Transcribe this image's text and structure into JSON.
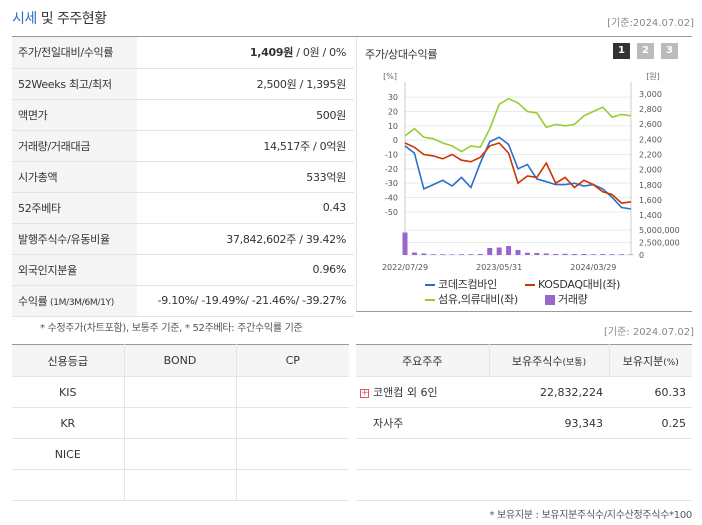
{
  "header": {
    "title_accent": "시세",
    "title_rest": " 및 주주현황",
    "date": "[기준:2024.07.02]"
  },
  "quote_rows": [
    {
      "key": "주가/전일대비/수익률",
      "value_bold": "1,409원",
      "value_rest": " / 0원 / 0%"
    },
    {
      "key": "52Weeks 최고/최저",
      "value": "2,500원 / 1,395원"
    },
    {
      "key": "액면가",
      "value": "500원"
    },
    {
      "key": "거래량/거래대금",
      "value": "14,517주 / 0억원"
    },
    {
      "key": "시가총액",
      "value": "533억원"
    },
    {
      "key": "52주베타",
      "value": "0.43"
    },
    {
      "key": "발행주식수/유동비율",
      "value": "37,842,602주 / 39.42%"
    },
    {
      "key": "외국인지분율",
      "value": "0.96%"
    }
  ],
  "returns_row": {
    "key": "수익률",
    "key_small": " (1M/3M/6M/1Y)",
    "value": "-9.10%/ -19.49%/ -21.46%/ -39.27%"
  },
  "notes": "* 수정주가(차트포함), 보통주 기준, * 52주베타: 주간수익률 기준",
  "chart_panel": {
    "title": "주가/상대수익률",
    "pages": [
      "1",
      "2",
      "3"
    ],
    "left_unit": "[%]",
    "right_unit": "[원]",
    "left_ticks": [
      "30",
      "20",
      "10",
      "0",
      "-10",
      "-20",
      "-30",
      "-40",
      "-50"
    ],
    "right_ticks": [
      "3,000",
      "2,800",
      "2,600",
      "2,400",
      "2,200",
      "2,000",
      "1,800",
      "1,600",
      "1,400"
    ],
    "vol_ticks": [
      "5,000,000",
      "2,500,000",
      "0"
    ],
    "x_ticks": [
      "2022/07/29",
      "2023/05/31",
      "2024/03/29"
    ],
    "legend": [
      "코데즈컴바인",
      "KOSDAQ대비(좌)",
      "섬유,의류대비(좌)",
      "거래량"
    ],
    "colors": {
      "stock": "#2a6fc9",
      "kosdaq": "#cc3300",
      "textile": "#99cc33",
      "volume": "#9966cc"
    }
  },
  "chart_data": {
    "type": "line",
    "x": [
      "2022/07/29",
      "2022/08/31",
      "2022/09/30",
      "2022/10/31",
      "2022/11/30",
      "2022/12/29",
      "2023/01/31",
      "2023/02/28",
      "2023/03/31",
      "2023/04/28",
      "2023/05/31",
      "2023/06/30",
      "2023/07/31",
      "2023/08/31",
      "2023/09/27",
      "2023/10/31",
      "2023/11/30",
      "2023/12/28",
      "2024/01/31",
      "2024/02/29",
      "2024/03/29",
      "2024/04/30",
      "2024/05/31",
      "2024/06/28",
      "2024/07/02"
    ],
    "series": [
      {
        "name": "코데즈컴바인",
        "values": [
          -4,
          -9,
          -34,
          -31,
          -28,
          -32,
          -26,
          -33,
          -16,
          -1,
          2,
          -3,
          -20,
          -17,
          -27,
          -29,
          -31,
          -31,
          -30,
          -32,
          -31,
          -34,
          -40,
          -47,
          -48
        ]
      },
      {
        "name": "KOSDAQ대비(좌)",
        "values": [
          -2,
          -5,
          -10,
          -11,
          -13,
          -10,
          -14,
          -15,
          -12,
          -4,
          -2,
          -9,
          -30,
          -25,
          -26,
          -16,
          -30,
          -26,
          -33,
          -28,
          -31,
          -36,
          -38,
          -44,
          -43
        ]
      },
      {
        "name": "섬유,의류대비(좌)",
        "values": [
          3,
          8,
          2,
          1,
          -2,
          -4,
          -8,
          -4,
          -5,
          8,
          25,
          29,
          26,
          20,
          19,
          9,
          11,
          10,
          11,
          17,
          20,
          23,
          16,
          18,
          17
        ]
      }
    ],
    "volume": [
      4500000,
      500000,
      300000,
      150000,
      150000,
      120000,
      150000,
      150000,
      200000,
      1400000,
      1500000,
      1800000,
      1000000,
      450000,
      400000,
      300000,
      200000,
      250000,
      200000,
      200000,
      150000,
      180000,
      150000,
      150000,
      100000
    ],
    "y_left_range": [
      -55,
      35
    ],
    "y_right_range": [
      1350,
      3050
    ],
    "y_volume_range": [
      0,
      5000000
    ]
  },
  "date2": "[기준: 2024.07.02]",
  "credit_table": {
    "headers": [
      "신용등급",
      "BOND",
      "CP"
    ],
    "rows": [
      [
        "KIS",
        "",
        ""
      ],
      [
        "KR",
        "",
        ""
      ],
      [
        "NICE",
        "",
        ""
      ],
      [
        "",
        "",
        ""
      ]
    ]
  },
  "holder_table": {
    "headers": [
      "주요주주",
      "보유주식수",
      "(보통)",
      "보유지분",
      "(%)"
    ],
    "rows": [
      {
        "name": "코앤컴 외 6인",
        "shares": "22,832,224",
        "pct": "60.33"
      },
      {
        "name": "자사주",
        "shares": "93,343",
        "pct": "0.25"
      },
      {
        "name": "",
        "shares": "",
        "pct": ""
      },
      {
        "name": "",
        "shares": "",
        "pct": ""
      }
    ]
  },
  "footnote": "* 보유지분 : 보유지분주식수/지수산정주식수*100"
}
